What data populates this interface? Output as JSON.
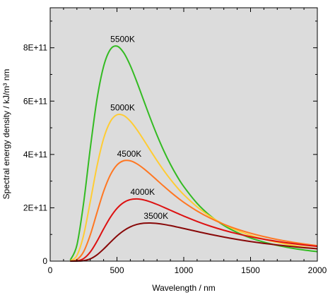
{
  "chart_data": {
    "type": "line",
    "xlabel": "Wavelength / nm",
    "ylabel": "Spectral energy density / kJ/m³ nm",
    "xlim": [
      0,
      2000
    ],
    "ylim": [
      0,
      950000000000
    ],
    "x_ticks": [
      "0",
      "500",
      "1000",
      "1500",
      "2000"
    ],
    "y_ticks": [
      "0",
      "2E+11",
      "4E+11",
      "6E+11",
      "8E+11"
    ],
    "grid": false,
    "plot_background": "#dcdcdc",
    "x": [
      150,
      200,
      250,
      300,
      350,
      400,
      450,
      500,
      550,
      600,
      650,
      700,
      750,
      800,
      850,
      900,
      950,
      1000,
      1100,
      1200,
      1300,
      1400,
      1500,
      1600,
      1700,
      1800,
      1900,
      2000
    ],
    "series": [
      {
        "name": "5500K",
        "color": "#33bb22",
        "values": [
          3500000000,
          59800000000,
          216900000000,
          422200000000,
          605800000000,
          730300000000,
          793400000000,
          806100000000,
          781700000000,
          733000000000,
          670500000000,
          602700000000,
          535400000000,
          472000000000,
          414400000000,
          363200000000,
          318400000000,
          279600000000,
          216600000000,
          169400000000,
          134000000000,
          107300000000,
          86900000000,
          71300000000,
          59000000000,
          49400000000,
          41700000000,
          35500000000
        ]
      },
      {
        "name": "5000K",
        "color": "#ffcc33",
        "values": [
          800000000,
          21100000000,
          96600000000,
          222700000000,
          355100000000,
          459500000000,
          523000000000,
          548700000000,
          546100000000,
          524700000000,
          492300000000,
          454500000000,
          415100000000,
          376500000000,
          340200000000,
          306800000000,
          276400000000,
          249200000000,
          203400000000,
          166900000000,
          138000000000,
          115100000000,
          96900000000,
          82300000000,
          70500000000,
          60800000000,
          52800000000,
          46200000000
        ]
      },
      {
        "name": "4500K",
        "color": "#ff7722",
        "values": [
          100000000,
          5600000000,
          35100000000,
          98000000000,
          181200000000,
          261400000000,
          322600000000,
          360300000000,
          376400000000,
          376000000000,
          364700000000,
          346900000000,
          325800000000,
          303400000000,
          281000000000,
          259500000000,
          239300000000,
          220600000000,
          187900000000,
          160700000000,
          138300000000,
          119900000000,
          104700000000,
          91900000000,
          81200000000,
          72100000000,
          64400000000,
          57800000000
        ]
      },
      {
        "name": "4000K",
        "color": "#dd1111",
        "values": [
          0,
          900000000,
          9500000000,
          34000000000,
          74000000000,
          120700000000,
          164000000000,
          197700000000,
          219700000000,
          230700000000,
          233100000000,
          229600000000,
          222200000000,
          212700000000,
          202000000000,
          190900000000,
          179800000000,
          169000000000,
          148800000000,
          131000000000,
          115800000000,
          102700000000,
          91600000000,
          82000000000,
          73800000000,
          66700000000,
          60500000000,
          55100000000
        ]
      },
      {
        "name": "3500K",
        "color": "#880808",
        "values": [
          0,
          100000000,
          1600000000,
          8400000000,
          23300000000,
          45300000000,
          70300000000,
          94300000000,
          114000000000,
          128500000000,
          137700000000,
          142200000000,
          143000000000,
          141300000000,
          137800000000,
          133200000000,
          127900000000,
          122400000000,
          111100000000,
          100200000000,
          90300000000,
          81300000000,
          73400000000,
          66500000000,
          60400000000,
          55100000000,
          50400000000,
          46300000000
        ]
      }
    ]
  }
}
